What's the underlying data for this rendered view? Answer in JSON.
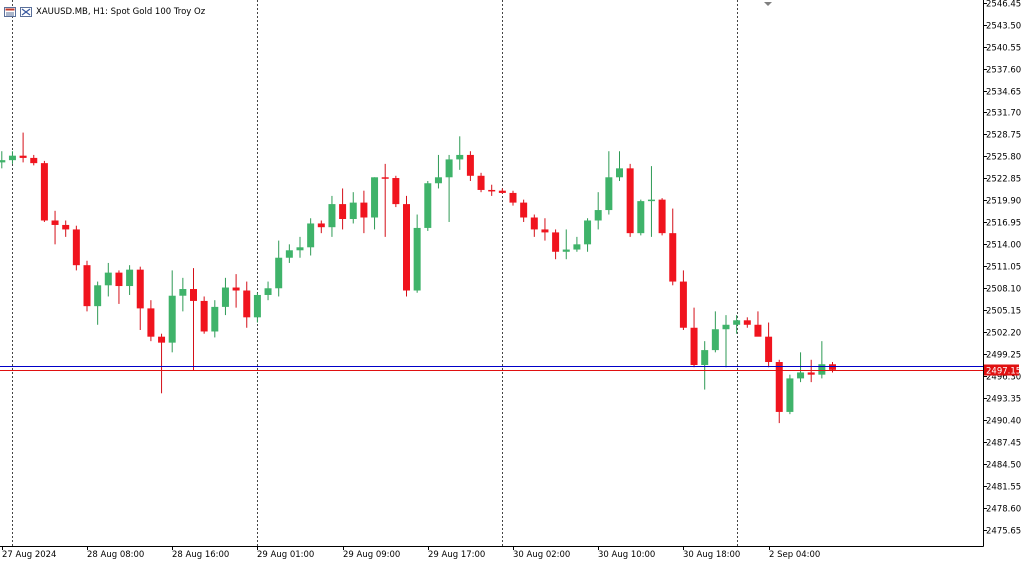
{
  "window": {
    "symbol": "XAUUSD.MB",
    "timeframe": "H1",
    "description": "Spot Gold 100 Troy Oz",
    "title_text": "XAUUSD.MB, H1:  Spot Gold 100 Troy Oz"
  },
  "colors": {
    "bull": "#3fb36a",
    "bear": "#f0141e",
    "bull_wick": "#2e9a55",
    "bear_wick": "#d40f18",
    "ask_line": "#0000c8",
    "bid_line": "#e01010",
    "price_label_bg": "#e01010",
    "grid_separator": "#444444",
    "axis": "#000000"
  },
  "chart_data": {
    "type": "candlestick",
    "title": "XAUUSD.MB, H1:  Spot Gold 100 Troy Oz",
    "ylim": [
      2473.5,
      2546.8
    ],
    "y_ticks": [
      "2546.45",
      "2543.50",
      "2540.55",
      "2537.60",
      "2534.65",
      "2531.70",
      "2528.75",
      "2525.80",
      "2522.85",
      "2519.90",
      "2516.95",
      "2514.00",
      "2511.05",
      "2508.10",
      "2505.15",
      "2502.20",
      "2499.25",
      "2496.30",
      "2493.35",
      "2490.40",
      "2487.45",
      "2484.50",
      "2481.55",
      "2478.60",
      "2475.65"
    ],
    "x_labels": [
      {
        "text": "27 Aug 2024",
        "index": 0
      },
      {
        "text": "28 Aug 08:00",
        "index": 8
      },
      {
        "text": "28 Aug 16:00",
        "index": 16
      },
      {
        "text": "29 Aug 01:00",
        "index": 24
      },
      {
        "text": "29 Aug 09:00",
        "index": 32
      },
      {
        "text": "29 Aug 17:00",
        "index": 40
      },
      {
        "text": "30 Aug 02:00",
        "index": 48
      },
      {
        "text": "30 Aug 10:00",
        "index": 56
      },
      {
        "text": "30 Aug 18:00",
        "index": 64
      },
      {
        "text": "2 Sep 04:00",
        "index": 72
      }
    ],
    "day_separators": [
      1,
      24,
      47,
      69
    ],
    "current_bid": "2497.15",
    "current_ask": "2497.6",
    "candles": [
      {
        "o": 2525.0,
        "h": 2526.5,
        "l": 2524.2,
        "c": 2525.3
      },
      {
        "o": 2525.3,
        "h": 2526.5,
        "l": 2524.8,
        "c": 2525.9
      },
      {
        "o": 2525.9,
        "h": 2529.0,
        "l": 2525.0,
        "c": 2525.6
      },
      {
        "o": 2525.6,
        "h": 2526.0,
        "l": 2524.6,
        "c": 2524.9
      },
      {
        "o": 2524.9,
        "h": 2525.2,
        "l": 2517.0,
        "c": 2517.2
      },
      {
        "o": 2517.2,
        "h": 2518.5,
        "l": 2514.0,
        "c": 2516.6
      },
      {
        "o": 2516.6,
        "h": 2517.2,
        "l": 2515.0,
        "c": 2516.0
      },
      {
        "o": 2516.0,
        "h": 2516.5,
        "l": 2510.5,
        "c": 2511.2
      },
      {
        "o": 2511.2,
        "h": 2511.8,
        "l": 2505.0,
        "c": 2505.7
      },
      {
        "o": 2505.7,
        "h": 2509.0,
        "l": 2503.2,
        "c": 2508.5
      },
      {
        "o": 2508.5,
        "h": 2511.5,
        "l": 2507.0,
        "c": 2510.2
      },
      {
        "o": 2510.2,
        "h": 2510.5,
        "l": 2506.0,
        "c": 2508.4
      },
      {
        "o": 2508.4,
        "h": 2511.2,
        "l": 2507.2,
        "c": 2510.6
      },
      {
        "o": 2510.6,
        "h": 2511.0,
        "l": 2502.5,
        "c": 2505.4
      },
      {
        "o": 2505.4,
        "h": 2506.5,
        "l": 2501.0,
        "c": 2501.6
      },
      {
        "o": 2501.6,
        "h": 2502.0,
        "l": 2494.0,
        "c": 2500.8
      },
      {
        "o": 2500.8,
        "h": 2510.5,
        "l": 2499.5,
        "c": 2507.1
      },
      {
        "o": 2507.1,
        "h": 2509.5,
        "l": 2505.0,
        "c": 2508.0
      },
      {
        "o": 2508.0,
        "h": 2510.8,
        "l": 2497.0,
        "c": 2506.4
      },
      {
        "o": 2506.4,
        "h": 2507.0,
        "l": 2502.0,
        "c": 2502.3
      },
      {
        "o": 2502.3,
        "h": 2506.5,
        "l": 2501.5,
        "c": 2505.6
      },
      {
        "o": 2505.6,
        "h": 2509.5,
        "l": 2504.5,
        "c": 2508.2
      },
      {
        "o": 2508.2,
        "h": 2510.0,
        "l": 2505.5,
        "c": 2507.8
      },
      {
        "o": 2507.8,
        "h": 2509.0,
        "l": 2502.8,
        "c": 2504.2
      },
      {
        "o": 2504.2,
        "h": 2507.5,
        "l": 2503.5,
        "c": 2507.2
      },
      {
        "o": 2507.2,
        "h": 2509.0,
        "l": 2506.5,
        "c": 2508.1
      },
      {
        "o": 2508.1,
        "h": 2514.5,
        "l": 2507.0,
        "c": 2512.2
      },
      {
        "o": 2512.2,
        "h": 2514.0,
        "l": 2511.5,
        "c": 2513.2
      },
      {
        "o": 2513.2,
        "h": 2515.0,
        "l": 2512.2,
        "c": 2513.6
      },
      {
        "o": 2513.6,
        "h": 2517.5,
        "l": 2512.5,
        "c": 2516.8
      },
      {
        "o": 2516.8,
        "h": 2517.2,
        "l": 2515.5,
        "c": 2516.3
      },
      {
        "o": 2516.3,
        "h": 2520.5,
        "l": 2515.0,
        "c": 2519.4
      },
      {
        "o": 2519.4,
        "h": 2521.5,
        "l": 2516.0,
        "c": 2517.4
      },
      {
        "o": 2517.4,
        "h": 2521.0,
        "l": 2516.8,
        "c": 2519.6
      },
      {
        "o": 2519.6,
        "h": 2521.2,
        "l": 2515.5,
        "c": 2517.6
      },
      {
        "o": 2517.6,
        "h": 2523.0,
        "l": 2516.0,
        "c": 2523.0
      },
      {
        "o": 2523.0,
        "h": 2524.8,
        "l": 2515.0,
        "c": 2522.9
      },
      {
        "o": 2522.9,
        "h": 2523.2,
        "l": 2519.0,
        "c": 2519.4
      },
      {
        "o": 2519.4,
        "h": 2520.5,
        "l": 2507.0,
        "c": 2507.8
      },
      {
        "o": 2507.8,
        "h": 2518.0,
        "l": 2507.5,
        "c": 2516.2
      },
      {
        "o": 2516.2,
        "h": 2522.5,
        "l": 2515.8,
        "c": 2522.2
      },
      {
        "o": 2522.2,
        "h": 2526.0,
        "l": 2521.5,
        "c": 2523.0
      },
      {
        "o": 2523.0,
        "h": 2526.0,
        "l": 2517.0,
        "c": 2525.4
      },
      {
        "o": 2525.4,
        "h": 2528.5,
        "l": 2524.0,
        "c": 2526.0
      },
      {
        "o": 2526.0,
        "h": 2526.5,
        "l": 2522.5,
        "c": 2523.2
      },
      {
        "o": 2523.2,
        "h": 2523.6,
        "l": 2521.0,
        "c": 2521.3
      },
      {
        "o": 2521.3,
        "h": 2522.0,
        "l": 2520.5,
        "c": 2521.2
      },
      {
        "o": 2521.2,
        "h": 2521.5,
        "l": 2520.8,
        "c": 2520.9
      },
      {
        "o": 2520.9,
        "h": 2521.2,
        "l": 2519.2,
        "c": 2519.6
      },
      {
        "o": 2519.6,
        "h": 2520.0,
        "l": 2517.0,
        "c": 2517.6
      },
      {
        "o": 2517.6,
        "h": 2518.0,
        "l": 2515.0,
        "c": 2516.0
      },
      {
        "o": 2516.0,
        "h": 2517.5,
        "l": 2514.5,
        "c": 2515.6
      },
      {
        "o": 2515.6,
        "h": 2516.0,
        "l": 2512.0,
        "c": 2513.0
      },
      {
        "o": 2513.0,
        "h": 2516.0,
        "l": 2512.0,
        "c": 2513.3
      },
      {
        "o": 2513.3,
        "h": 2515.0,
        "l": 2513.0,
        "c": 2514.0
      },
      {
        "o": 2514.0,
        "h": 2517.5,
        "l": 2513.0,
        "c": 2517.2
      },
      {
        "o": 2517.2,
        "h": 2521.0,
        "l": 2516.0,
        "c": 2518.6
      },
      {
        "o": 2518.6,
        "h": 2526.5,
        "l": 2518.0,
        "c": 2523.0
      },
      {
        "o": 2523.0,
        "h": 2526.5,
        "l": 2522.5,
        "c": 2524.2
      },
      {
        "o": 2524.2,
        "h": 2524.8,
        "l": 2515.0,
        "c": 2515.5
      },
      {
        "o": 2515.5,
        "h": 2520.0,
        "l": 2515.2,
        "c": 2519.8
      },
      {
        "o": 2519.8,
        "h": 2524.5,
        "l": 2515.0,
        "c": 2520.0
      },
      {
        "o": 2520.0,
        "h": 2520.2,
        "l": 2515.2,
        "c": 2515.5
      },
      {
        "o": 2515.5,
        "h": 2518.8,
        "l": 2508.5,
        "c": 2509.0
      },
      {
        "o": 2509.0,
        "h": 2510.5,
        "l": 2502.5,
        "c": 2502.8
      },
      {
        "o": 2502.8,
        "h": 2505.5,
        "l": 2497.5,
        "c": 2497.8
      },
      {
        "o": 2497.8,
        "h": 2501.0,
        "l": 2494.5,
        "c": 2499.8
      },
      {
        "o": 2499.8,
        "h": 2505.0,
        "l": 2499.5,
        "c": 2502.6
      },
      {
        "o": 2502.6,
        "h": 2504.5,
        "l": 2497.5,
        "c": 2503.2
      },
      {
        "o": 2503.2,
        "h": 2504.5,
        "l": 2502.0,
        "c": 2503.8
      },
      {
        "o": 2503.8,
        "h": 2504.2,
        "l": 2502.8,
        "c": 2503.2
      },
      {
        "o": 2503.2,
        "h": 2505.0,
        "l": 2501.8,
        "c": 2501.6
      },
      {
        "o": 2501.6,
        "h": 2503.5,
        "l": 2497.5,
        "c": 2498.2
      },
      {
        "o": 2498.2,
        "h": 2498.5,
        "l": 2490.0,
        "c": 2491.5
      },
      {
        "o": 2491.5,
        "h": 2496.5,
        "l": 2491.2,
        "c": 2496.0
      },
      {
        "o": 2496.0,
        "h": 2499.5,
        "l": 2495.5,
        "c": 2496.8
      },
      {
        "o": 2496.8,
        "h": 2498.5,
        "l": 2495.5,
        "c": 2496.5
      },
      {
        "o": 2496.5,
        "h": 2501.0,
        "l": 2496.0,
        "c": 2497.9
      },
      {
        "o": 2497.9,
        "h": 2498.2,
        "l": 2496.8,
        "c": 2497.15
      }
    ]
  }
}
